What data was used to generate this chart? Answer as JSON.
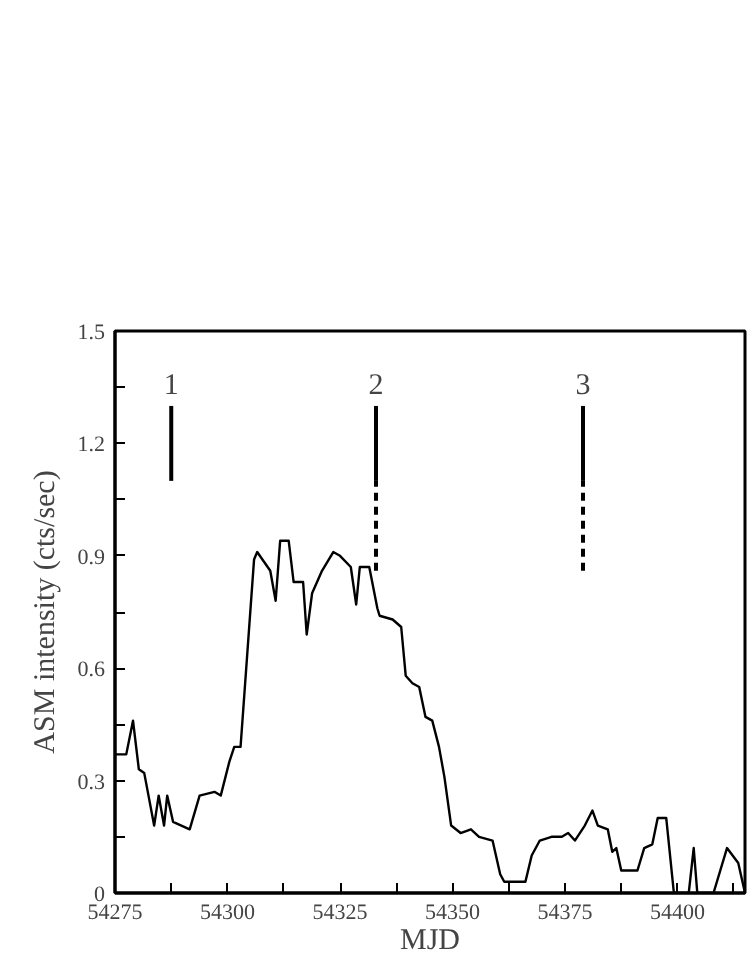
{
  "chart_data": {
    "type": "line",
    "xlabel": "MJD",
    "ylabel": "ASM intensity (cts/sec)",
    "x": [
      54275,
      54277.5,
      54279,
      54280.3,
      54281.5,
      54283.7,
      54284.7,
      54285.9,
      54286.6,
      54287.9,
      54291.6,
      54293.8,
      54297.1,
      54298.5,
      54300.4,
      54301.5,
      54302.9,
      54305.9,
      54306.6,
      54309.5,
      54310.7,
      54311.7,
      54313.6,
      54314.7,
      54316.8,
      54317.6,
      54318.8,
      54321,
      54323.5,
      54325,
      54327.4,
      54328.6,
      54329.4,
      54331.5,
      54333.3,
      54333.8,
      54336.7,
      54338.6,
      54339.6,
      54341.1,
      54342.6,
      54344,
      54345.5,
      54347,
      54348.2,
      54349.7,
      54351.8,
      54354.1,
      54355.9,
      54358.9,
      54360.6,
      54361.5,
      54366.2,
      54367.6,
      54369.4,
      54372,
      54374.3,
      54375.7,
      54377.2,
      54379.4,
      54381.1,
      54382.3,
      54384.5,
      54385.5,
      54386.4,
      54387.5,
      54391.1,
      54392.6,
      54394.4,
      54395.6,
      54397.5,
      54399.2,
      54402.5,
      54403.6,
      54404.4,
      54408,
      54411,
      54413.5,
      54415
    ],
    "series": [
      {
        "values": [
          0.37,
          0.37,
          0.46,
          0.33,
          0.32,
          0.18,
          0.26,
          0.18,
          0.26,
          0.19,
          0.17,
          0.26,
          0.27,
          0.26,
          0.35,
          0.39,
          0.39,
          0.89,
          0.91,
          0.86,
          0.78,
          0.94,
          0.94,
          0.83,
          0.83,
          0.69,
          0.8,
          0.86,
          0.91,
          0.9,
          0.87,
          0.77,
          0.87,
          0.87,
          0.76,
          0.74,
          0.73,
          0.71,
          0.58,
          0.56,
          0.55,
          0.47,
          0.46,
          0.39,
          0.31,
          0.18,
          0.16,
          0.17,
          0.15,
          0.14,
          0.05,
          0.03,
          0.03,
          0.1,
          0.14,
          0.15,
          0.15,
          0.16,
          0.14,
          0.18,
          0.22,
          0.18,
          0.17,
          0.11,
          0.12,
          0.06,
          0.06,
          0.12,
          0.13,
          0.2,
          0.2,
          0,
          0,
          0.12,
          0,
          0,
          0.12,
          0.08,
          0
        ],
        "color": "#000000",
        "line_style": "solid"
      },
      {
        "x": [
          54287.5,
          54287.5
        ],
        "values": [
          1.1,
          1.3
        ],
        "color": "#000000",
        "line_style": "solid"
      },
      {
        "x": [
          54333,
          54333
        ],
        "values": [
          1.1,
          1.3
        ],
        "color": "#000000",
        "line_style": "solid"
      },
      {
        "x": [
          54333,
          54333
        ],
        "values": [
          0.86,
          1.1
        ],
        "color": "#000000",
        "line_style": "dashed"
      },
      {
        "x": [
          54379,
          54379
        ],
        "values": [
          1.1,
          1.3
        ],
        "color": "#000000",
        "line_style": "solid"
      },
      {
        "x": [
          54379,
          54379
        ],
        "values": [
          0.86,
          1.1
        ],
        "color": "#000000",
        "line_style": "dashed"
      }
    ],
    "annotations": [
      {
        "text": "1",
        "x": 54287.5,
        "y": 1.3
      },
      {
        "text": "2",
        "x": 54333,
        "y": 1.3
      },
      {
        "text": "3",
        "x": 54379,
        "y": 1.3
      }
    ],
    "xlim": [
      54275,
      54415
    ],
    "ylim": [
      0,
      1.5
    ],
    "xticks": [
      54275,
      {
        "value": 54287.5,
        "label": null
      },
      54300,
      {
        "value": 54312.5,
        "label": null
      },
      54325,
      {
        "value": 54337.5,
        "label": null
      },
      54350,
      {
        "value": 54362.5,
        "label": null
      },
      54375,
      {
        "value": 54387.5,
        "label": null
      },
      54400,
      {
        "value": 54412.5,
        "label": null
      }
    ],
    "yticks": [
      0,
      {
        "value": 0.15,
        "label": null
      },
      0.3,
      {
        "value": 0.45,
        "label": null
      },
      0.6,
      {
        "value": 0.75,
        "label": null
      },
      0.9,
      {
        "value": 1.05,
        "label": null
      },
      1.2,
      {
        "value": 1.35,
        "label": null
      },
      1.5
    ],
    "grid": false,
    "marker": "none"
  }
}
